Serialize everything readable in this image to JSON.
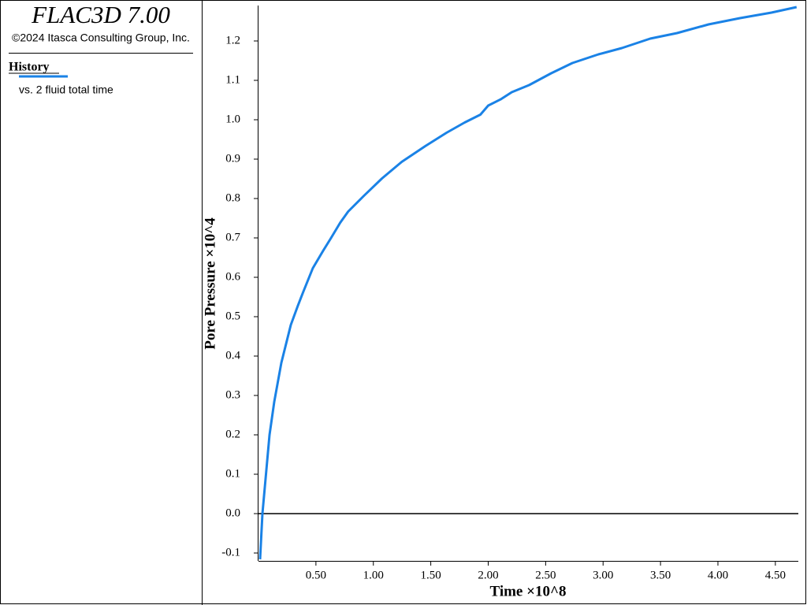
{
  "app_title": "FLAC3D 7.00",
  "copyright": "©2024 Itasca Consulting Group, Inc.",
  "legend_title": "History",
  "chart_data": {
    "type": "line",
    "x_label": "Time ×10^8",
    "y_label": "Pore Pressure ×10^4",
    "xlim": [
      0,
      4.7
    ],
    "ylim": [
      -0.12,
      1.29
    ],
    "xticks": [
      {
        "value": 0.5,
        "label": "0.50"
      },
      {
        "value": 1,
        "label": "1.00"
      },
      {
        "value": 1.5,
        "label": "1.50"
      },
      {
        "value": 2,
        "label": "2.00"
      },
      {
        "value": 2.5,
        "label": "2.50"
      },
      {
        "value": 3,
        "label": "3.00"
      },
      {
        "value": 3.5,
        "label": "3.50"
      },
      {
        "value": 4,
        "label": "4.00"
      },
      {
        "value": 4.5,
        "label": "4.50"
      }
    ],
    "yticks": [
      -0.1,
      {
        "value": 0,
        "label": "0.0"
      },
      0.1,
      0.2,
      0.3,
      0.4,
      0.5,
      0.6,
      0.7,
      0.8,
      0.9,
      {
        "value": 1,
        "label": "1.0"
      },
      1.1,
      1.2
    ],
    "series": [
      {
        "name": "vs. 2 fluid total time",
        "color": "#1a82e6",
        "x": [
          0.014,
          0.034,
          0.096,
          0.137,
          0.199,
          0.281,
          0.342,
          0.39,
          0.473,
          0.562,
          0.63,
          0.712,
          0.781,
          0.918,
          1.075,
          1.247,
          1.452,
          1.637,
          1.795,
          1.932,
          2.0,
          2.11,
          2.205,
          2.356,
          2.548,
          2.733,
          2.959,
          3.164,
          3.411,
          3.644,
          3.918,
          4.192,
          4.466,
          4.685
        ],
        "values": [
          -0.116,
          0.0,
          0.2,
          0.284,
          0.383,
          0.479,
          0.527,
          0.563,
          0.623,
          0.667,
          0.699,
          0.739,
          0.767,
          0.807,
          0.851,
          0.893,
          0.933,
          0.967,
          0.993,
          1.013,
          1.036,
          1.052,
          1.07,
          1.088,
          1.118,
          1.144,
          1.166,
          1.182,
          1.206,
          1.22,
          1.242,
          1.258,
          1.272,
          1.286
        ]
      }
    ]
  }
}
